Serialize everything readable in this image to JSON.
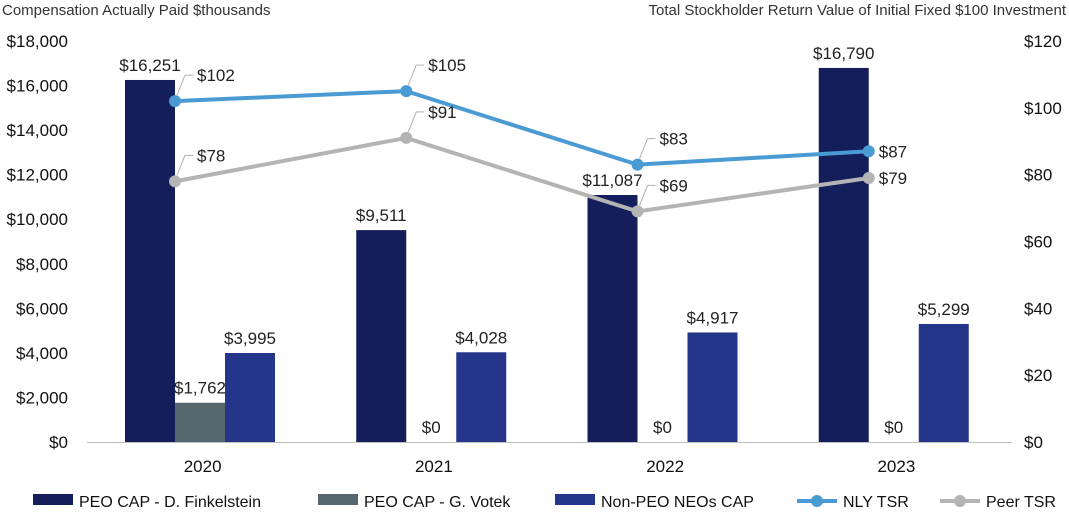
{
  "chart_data": {
    "type": "bar",
    "title_left": "Compensation Actually Paid $thousands",
    "title_right": "Total Stockholder Return Value of Initial Fixed $100 Investment",
    "categories": [
      "2020",
      "2021",
      "2022",
      "2023"
    ],
    "y_left": {
      "ylim": [
        0,
        18000
      ],
      "ticks": [
        "$0",
        "$2,000",
        "$4,000",
        "$6,000",
        "$8,000",
        "$10,000",
        "$12,000",
        "$14,000",
        "$16,000",
        "$18,000"
      ]
    },
    "y_right": {
      "ylim": [
        0,
        120
      ],
      "ticks": [
        "$0",
        "$20",
        "$40",
        "$60",
        "$80",
        "$100",
        "$120"
      ]
    },
    "bar_series": [
      {
        "name": "PEO CAP - D. Finkelstein",
        "color": "#141e5a",
        "values": [
          16251,
          9511,
          11087,
          16790
        ],
        "labels": [
          "$16,251",
          "$9,511",
          "$11,087",
          "$16,790"
        ]
      },
      {
        "name": "PEO CAP - G. Votek",
        "color": "#56676f",
        "values": [
          1762,
          0,
          0,
          0
        ],
        "labels": [
          "$1,762",
          "$0",
          "$0",
          "$0"
        ]
      },
      {
        "name": "Non-PEO NEOs CAP",
        "color": "#25358a",
        "values": [
          3995,
          4028,
          4917,
          5299
        ],
        "labels": [
          "$3,995",
          "$4,028",
          "$4,917",
          "$5,299"
        ]
      }
    ],
    "line_series": [
      {
        "name": "NLY TSR",
        "color": "#4a9ad4",
        "values": [
          102,
          105,
          83,
          87
        ],
        "labels": [
          "$102",
          "$105",
          "$83",
          "$87"
        ]
      },
      {
        "name": "Peer TSR",
        "color": "#b4b4b4",
        "values": [
          78,
          91,
          69,
          79
        ],
        "labels": [
          "$78",
          "$91",
          "$69",
          "$79"
        ]
      }
    ],
    "legend_position": "bottom",
    "grid": false
  }
}
